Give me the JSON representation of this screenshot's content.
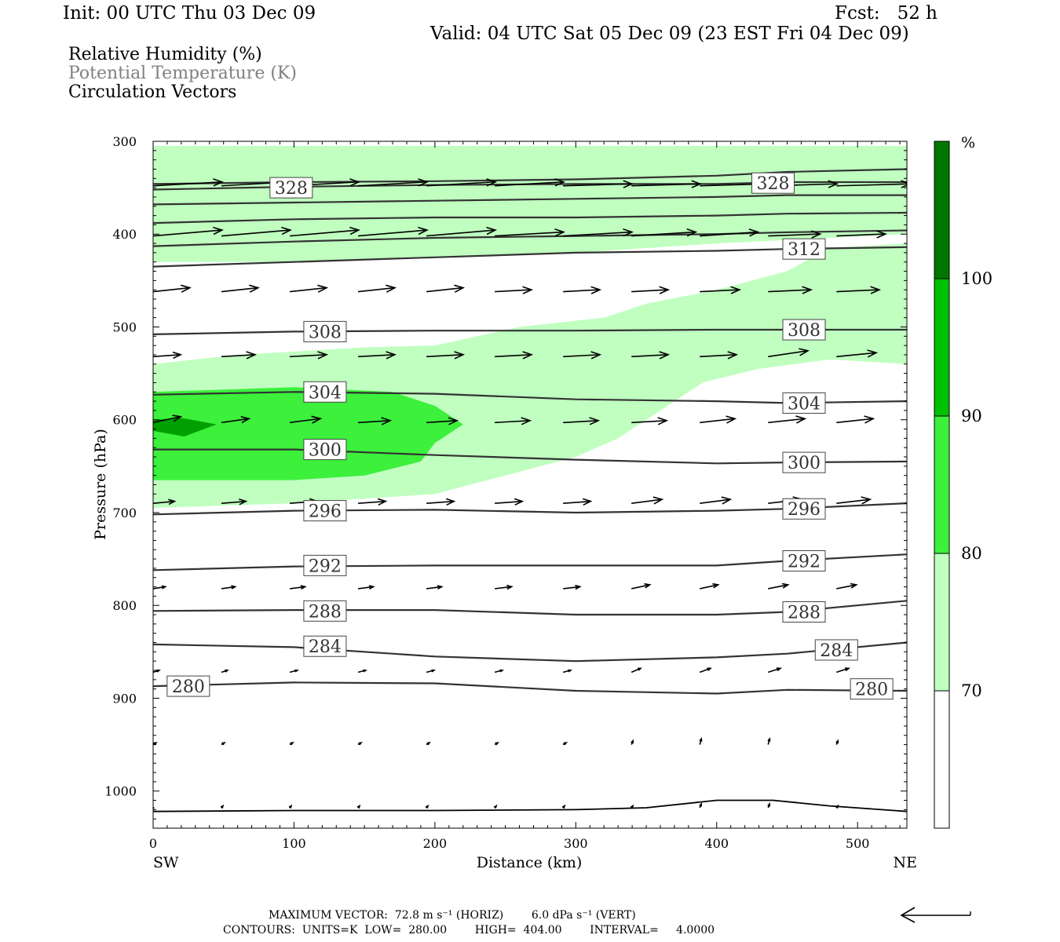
{
  "header": {
    "init": "Init: 00 UTC Thu 03 Dec 09",
    "fcst": "Fcst:   52 h",
    "valid": "Valid: 04 UTC Sat 05 Dec 09 (23 EST Fri 04 Dec 09)"
  },
  "fields": [
    {
      "label": "Relative Humidity (%)",
      "color": "#000000"
    },
    {
      "label": "Potential Temperature (K)",
      "color": "#808080"
    },
    {
      "label": "Circulation Vectors",
      "color": "#000000"
    }
  ],
  "footer": {
    "max_vector": "MAXIMUM VECTOR:  72.8 m s⁻¹ (HORIZ)        6.0 dPa s⁻¹ (VERT)",
    "contours": "CONTOURS:  UNITS=K  LOW=  280.00        HIGH=  404.00        INTERVAL=     4.0000"
  },
  "chart_data": {
    "type": "cross-section",
    "xlabel": "Distance (km)",
    "ylabel": "Pressure (hPa)",
    "x_ticks": [
      0,
      100,
      200,
      300,
      400,
      500
    ],
    "y_ticks": [
      300,
      400,
      500,
      600,
      700,
      800,
      900,
      1000
    ],
    "xlim": [
      0,
      535
    ],
    "ylim": [
      1040,
      300
    ],
    "x_end_labels": {
      "left": "SW",
      "right": "NE"
    },
    "colorbar": {
      "unit": "%",
      "levels": [
        70,
        80,
        90,
        100
      ],
      "colors": [
        "#ffffff",
        "#c0ffc0",
        "#3cf03c",
        "#00c000",
        "#007800"
      ]
    },
    "rh_regions": [
      {
        "level": "70-80",
        "color": "#c0ffc0",
        "points": [
          [
            0,
            305
          ],
          [
            535,
            305
          ],
          [
            535,
            400
          ],
          [
            400,
            410
          ],
          [
            300,
            420
          ],
          [
            200,
            425
          ],
          [
            100,
            430
          ],
          [
            0,
            430
          ]
        ]
      },
      {
        "level": "70-80",
        "color": "#c0ffc0",
        "points": [
          [
            0,
            540
          ],
          [
            60,
            530
          ],
          [
            150,
            522
          ],
          [
            200,
            520
          ],
          [
            260,
            500
          ],
          [
            320,
            490
          ],
          [
            350,
            475
          ],
          [
            400,
            460
          ],
          [
            450,
            440
          ],
          [
            480,
            415
          ],
          [
            535,
            410
          ],
          [
            535,
            540
          ],
          [
            480,
            535
          ],
          [
            430,
            545
          ],
          [
            390,
            560
          ],
          [
            370,
            580
          ],
          [
            350,
            600
          ],
          [
            330,
            620
          ],
          [
            300,
            640
          ],
          [
            250,
            660
          ],
          [
            200,
            680
          ],
          [
            100,
            690
          ],
          [
            0,
            695
          ]
        ]
      },
      {
        "level": "80-90",
        "color": "#3cf03c",
        "points": [
          [
            0,
            570
          ],
          [
            100,
            565
          ],
          [
            170,
            570
          ],
          [
            200,
            585
          ],
          [
            220,
            605
          ],
          [
            200,
            625
          ],
          [
            190,
            645
          ],
          [
            150,
            660
          ],
          [
            100,
            665
          ],
          [
            50,
            665
          ],
          [
            0,
            665
          ]
        ]
      },
      {
        "level": "90-100",
        "color": "#00a000",
        "points": [
          [
            0,
            600
          ],
          [
            20,
            598
          ],
          [
            45,
            605
          ],
          [
            22,
            618
          ],
          [
            0,
            612
          ]
        ]
      }
    ],
    "theta_contours": [
      {
        "value": 280,
        "points": [
          [
            0,
            887
          ],
          [
            100,
            883
          ],
          [
            200,
            884
          ],
          [
            300,
            892
          ],
          [
            400,
            895
          ],
          [
            450,
            891
          ],
          [
            535,
            892
          ]
        ],
        "labels": [
          [
            25,
            887
          ],
          [
            510,
            890
          ]
        ]
      },
      {
        "value": 284,
        "points": [
          [
            0,
            842
          ],
          [
            100,
            845
          ],
          [
            200,
            855
          ],
          [
            300,
            860
          ],
          [
            400,
            856
          ],
          [
            450,
            852
          ],
          [
            535,
            840
          ]
        ],
        "labels": [
          [
            122,
            844
          ],
          [
            485,
            848
          ]
        ]
      },
      {
        "value": 288,
        "points": [
          [
            0,
            806
          ],
          [
            100,
            805
          ],
          [
            200,
            805
          ],
          [
            300,
            810
          ],
          [
            400,
            810
          ],
          [
            450,
            807
          ],
          [
            535,
            795
          ]
        ],
        "labels": [
          [
            122,
            806
          ],
          [
            462,
            807
          ]
        ]
      },
      {
        "value": 292,
        "points": [
          [
            0,
            762
          ],
          [
            100,
            758
          ],
          [
            200,
            757
          ],
          [
            300,
            757
          ],
          [
            400,
            757
          ],
          [
            450,
            752
          ],
          [
            535,
            745
          ]
        ],
        "labels": [
          [
            122,
            757
          ],
          [
            462,
            752
          ]
        ]
      },
      {
        "value": 296,
        "points": [
          [
            0,
            702
          ],
          [
            100,
            698
          ],
          [
            200,
            697
          ],
          [
            300,
            700
          ],
          [
            400,
            698
          ],
          [
            450,
            696
          ],
          [
            535,
            690
          ]
        ],
        "labels": [
          [
            122,
            698
          ],
          [
            462,
            696
          ]
        ]
      },
      {
        "value": 300,
        "points": [
          [
            0,
            632
          ],
          [
            100,
            632
          ],
          [
            200,
            638
          ],
          [
            300,
            643
          ],
          [
            400,
            647
          ],
          [
            450,
            646
          ],
          [
            535,
            645
          ]
        ],
        "labels": [
          [
            122,
            632
          ],
          [
            462,
            646
          ]
        ]
      },
      {
        "value": 304,
        "points": [
          [
            0,
            573
          ],
          [
            100,
            570
          ],
          [
            200,
            572
          ],
          [
            300,
            578
          ],
          [
            400,
            580
          ],
          [
            450,
            582
          ],
          [
            535,
            580
          ]
        ],
        "labels": [
          [
            122,
            570
          ],
          [
            462,
            582
          ]
        ]
      },
      {
        "value": 308,
        "points": [
          [
            0,
            508
          ],
          [
            100,
            505
          ],
          [
            200,
            504
          ],
          [
            300,
            504
          ],
          [
            400,
            503
          ],
          [
            450,
            503
          ],
          [
            535,
            503
          ]
        ],
        "labels": [
          [
            122,
            505
          ],
          [
            462,
            503
          ]
        ]
      },
      {
        "value": 312,
        "points": [
          [
            0,
            435
          ],
          [
            100,
            430
          ],
          [
            200,
            425
          ],
          [
            300,
            420
          ],
          [
            400,
            418
          ],
          [
            450,
            416
          ],
          [
            535,
            414
          ]
        ],
        "labels": [
          [
            462,
            416
          ]
        ]
      },
      {
        "value": 316,
        "points": [
          [
            0,
            413
          ],
          [
            100,
            408
          ],
          [
            200,
            404
          ],
          [
            300,
            402
          ],
          [
            400,
            400
          ],
          [
            450,
            398
          ],
          [
            535,
            396
          ]
        ],
        "labels": []
      },
      {
        "value": 320,
        "points": [
          [
            0,
            388
          ],
          [
            100,
            384
          ],
          [
            200,
            382
          ],
          [
            300,
            382
          ],
          [
            400,
            380
          ],
          [
            450,
            378
          ],
          [
            535,
            377
          ]
        ],
        "labels": []
      },
      {
        "value": 324,
        "points": [
          [
            0,
            368
          ],
          [
            100,
            366
          ],
          [
            200,
            364
          ],
          [
            300,
            362
          ],
          [
            400,
            360
          ],
          [
            450,
            358
          ],
          [
            535,
            358
          ]
        ],
        "labels": []
      },
      {
        "value": 328,
        "points": [
          [
            0,
            352
          ],
          [
            100,
            349
          ],
          [
            200,
            347
          ],
          [
            300,
            346
          ],
          [
            400,
            346
          ],
          [
            450,
            344
          ],
          [
            535,
            344
          ]
        ],
        "labels": [
          [
            98,
            350
          ],
          [
            440,
            345
          ]
        ]
      },
      {
        "value": 332,
        "points": [
          [
            0,
            346
          ],
          [
            100,
            344
          ],
          [
            200,
            343
          ],
          [
            300,
            341
          ],
          [
            400,
            337
          ],
          [
            450,
            333
          ],
          [
            535,
            330
          ]
        ],
        "labels": []
      }
    ],
    "vectors": {
      "x": [
        0,
        48.5,
        97,
        145.5,
        194,
        242.5,
        291,
        339.5,
        388,
        436.5,
        485
      ],
      "rows": [
        {
          "p": 348,
          "u": [
            45,
            45,
            45,
            45,
            45,
            45,
            45,
            45,
            45,
            45,
            48
          ],
          "w": [
            0.2,
            0.2,
            0.2,
            0.2,
            0.2,
            0.2,
            0.1,
            0.1,
            0.1,
            0.1,
            0.1
          ]
        },
        {
          "p": 402,
          "u": [
            45,
            45,
            45,
            45,
            45,
            45,
            45,
            42,
            38,
            34,
            32
          ],
          "w": [
            0.3,
            0.3,
            0.3,
            0.3,
            0.3,
            0.2,
            0.2,
            0.2,
            0.2,
            0.1,
            0.1
          ]
        },
        {
          "p": 462,
          "u": [
            24,
            24,
            24,
            24,
            24,
            24,
            24,
            24,
            26,
            28,
            28
          ],
          "w": [
            0.2,
            0.2,
            0.2,
            0.2,
            0.2,
            0.1,
            0.1,
            0.1,
            0.1,
            0.1,
            0.1
          ]
        },
        {
          "p": 532,
          "u": [
            18,
            22,
            24,
            24,
            24,
            24,
            24,
            24,
            24,
            26,
            26
          ],
          "w": [
            0.1,
            0.1,
            0.1,
            0.1,
            0.1,
            0.1,
            0.1,
            0.1,
            0.1,
            0.3,
            0.2
          ]
        },
        {
          "p": 603,
          "u": [
            18,
            18,
            20,
            21,
            20,
            23,
            23,
            23,
            23,
            24,
            24
          ],
          "w": [
            0.3,
            0.2,
            0.2,
            0.1,
            0.1,
            0.1,
            0.1,
            0.1,
            0.2,
            0.2,
            0.2
          ]
        },
        {
          "p": 690,
          "u": [
            14,
            16,
            18,
            18,
            18,
            18,
            18,
            20,
            20,
            22,
            22
          ],
          "w": [
            0.1,
            0.1,
            0.1,
            0.1,
            0.1,
            0.1,
            0.1,
            0.2,
            0.2,
            0.2,
            0.2
          ]
        },
        {
          "p": 782,
          "u": [
            8,
            9,
            10,
            10,
            10,
            11,
            11,
            12,
            12,
            13,
            13
          ],
          "w": [
            0.1,
            0.1,
            0.1,
            0.1,
            0.1,
            0.1,
            0.1,
            0.2,
            0.2,
            0.2,
            0.2
          ]
        },
        {
          "p": 872,
          "u": [
            4,
            4,
            5,
            5,
            5,
            5,
            5,
            6,
            7,
            8,
            8
          ],
          "w": [
            0.1,
            0.1,
            0.1,
            0.1,
            0.1,
            0.1,
            0.1,
            0.2,
            0.2,
            0.2,
            0.2
          ]
        },
        {
          "p": 950,
          "u": [
            2,
            2,
            2,
            2,
            2,
            2,
            2,
            1,
            1,
            1,
            1
          ],
          "w": [
            0.1,
            0.1,
            0.1,
            0.1,
            0.1,
            0.1,
            0.1,
            0.2,
            0.3,
            0.3,
            0.2
          ]
        },
        {
          "p": 1018,
          "u": [
            0,
            1,
            1,
            1,
            1,
            1,
            1,
            1,
            1,
            1,
            1
          ],
          "w": [
            0.0,
            0.1,
            0.1,
            0.1,
            0.1,
            0.1,
            0.1,
            0.1,
            0.2,
            0.2,
            0.1
          ]
        }
      ]
    },
    "terrain_line": {
      "points": [
        [
          0,
          1022
        ],
        [
          100,
          1021
        ],
        [
          200,
          1021
        ],
        [
          300,
          1020
        ],
        [
          350,
          1018
        ],
        [
          400,
          1010
        ],
        [
          440,
          1010
        ],
        [
          480,
          1016
        ],
        [
          535,
          1022
        ]
      ]
    }
  }
}
